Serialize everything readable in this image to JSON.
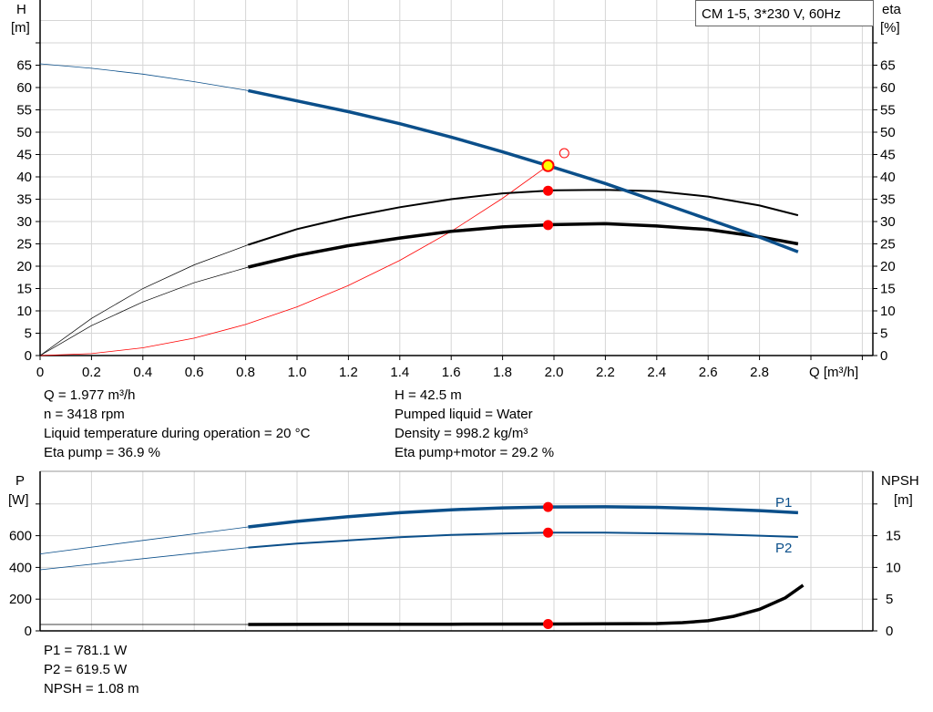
{
  "chart_data": [
    {
      "type": "line",
      "title": "CM 1-5, 3*230 V, 60Hz",
      "xlabel": "Q [m³/h]",
      "ylabel": "H [m]",
      "y2label": "eta [%]",
      "xlim": [
        0,
        3.2
      ],
      "ylim": [
        0,
        80
      ],
      "x_ticks": [
        "0",
        "0.2",
        "0.4",
        "0.6",
        "0.8",
        "1.0",
        "1.2",
        "1.4",
        "1.6",
        "1.8",
        "2.0",
        "2.2",
        "2.4",
        "2.6",
        "2.8"
      ],
      "y_ticks": [
        "0",
        "5",
        "10",
        "15",
        "20",
        "25",
        "30",
        "35",
        "40",
        "45",
        "50",
        "55",
        "60",
        "65"
      ],
      "grid": true,
      "series": [
        {
          "id": "H",
          "color": "#0b4f8a",
          "x": [
            0,
            0.2,
            0.4,
            0.6,
            0.81,
            1.0,
            1.2,
            1.4,
            1.6,
            1.8,
            1.977,
            2.2,
            2.4,
            2.6,
            2.8,
            2.95
          ],
          "y": [
            65.3,
            64.3,
            63,
            61.3,
            59.3,
            57,
            54.6,
            51.9,
            48.9,
            45.6,
            42.5,
            38.5,
            34.5,
            30.5,
            26.5,
            23.2
          ]
        },
        {
          "id": "eta_pump",
          "color": "#000000",
          "x": [
            0,
            0.2,
            0.4,
            0.6,
            0.81,
            1.0,
            1.2,
            1.4,
            1.6,
            1.8,
            2.0,
            2.2,
            2.4,
            2.6,
            2.8,
            2.95
          ],
          "y": [
            0,
            8.3,
            15,
            20.3,
            24.8,
            28.3,
            31,
            33.2,
            35,
            36.3,
            37,
            37.1,
            36.8,
            35.6,
            33.6,
            31.4
          ]
        },
        {
          "id": "eta_total",
          "color": "#000000",
          "x": [
            0,
            0.2,
            0.4,
            0.6,
            0.81,
            1.0,
            1.2,
            1.4,
            1.6,
            1.8,
            2.0,
            2.2,
            2.4,
            2.6,
            2.8,
            2.95
          ],
          "y": [
            0,
            6.7,
            12,
            16.3,
            19.8,
            22.4,
            24.6,
            26.3,
            27.8,
            28.8,
            29.3,
            29.5,
            29,
            28.2,
            26.6,
            25
          ]
        },
        {
          "id": "system",
          "color": "#ff0000",
          "x": [
            0,
            0.2,
            0.4,
            0.6,
            0.8,
            1.0,
            1.2,
            1.4,
            1.6,
            1.8,
            1.977
          ],
          "y": [
            0,
            0.43,
            1.74,
            3.9,
            6.96,
            10.9,
            15.7,
            21.3,
            27.8,
            35.2,
            42.5
          ]
        }
      ],
      "duty_point": {
        "x": 1.977,
        "y": 42.5
      },
      "markers": [
        {
          "x": 1.977,
          "y": 36.9
        },
        {
          "x": 1.977,
          "y": 29.2
        }
      ],
      "requested_point": {
        "x": 2.04,
        "y": 45.3
      }
    },
    {
      "type": "line",
      "ylabel": "P [W]",
      "y2label": "NPSH [m]",
      "xlim": [
        0,
        3.2
      ],
      "ylim": [
        0,
        1000
      ],
      "y_ticks": [
        "0",
        "200",
        "400",
        "600"
      ],
      "y2_ticks": [
        "0",
        "5",
        "10",
        "15"
      ],
      "grid": true,
      "series": [
        {
          "id": "P1",
          "name": "P1",
          "color": "#0b4f8a",
          "x": [
            0,
            0.4,
            0.81,
            1.0,
            1.2,
            1.4,
            1.6,
            1.8,
            1.977,
            2.2,
            2.4,
            2.6,
            2.8,
            2.95
          ],
          "y": [
            485,
            570,
            655,
            690,
            720,
            745,
            763,
            775,
            781,
            782,
            779,
            770,
            758,
            745
          ]
        },
        {
          "id": "P2",
          "name": "P2",
          "color": "#0b4f8a",
          "x": [
            0,
            0.4,
            0.81,
            1.0,
            1.2,
            1.4,
            1.6,
            1.8,
            1.977,
            2.2,
            2.4,
            2.6,
            2.8,
            2.95
          ],
          "y": [
            385,
            455,
            525,
            550,
            570,
            590,
            605,
            614,
            619.5,
            619,
            615,
            610,
            600,
            592
          ]
        },
        {
          "id": "NPSH",
          "color": "#000000",
          "x": [
            0,
            0.81,
            1.2,
            1.6,
            1.977,
            2.2,
            2.4,
            2.5,
            2.6,
            2.7,
            2.8,
            2.9,
            2.97
          ],
          "y_m": [
            1.0,
            1.0,
            1.03,
            1.05,
            1.08,
            1.1,
            1.15,
            1.3,
            1.6,
            2.3,
            3.4,
            5.2,
            7.2
          ]
        }
      ],
      "markers": [
        {
          "x": 1.977,
          "y": 781.1
        },
        {
          "x": 1.977,
          "y": 619.5
        },
        {
          "x": 1.977,
          "y_m": 1.08
        }
      ]
    }
  ],
  "readout": {
    "left": [
      "Q = 1.977 m³/h",
      "n = 3418 rpm",
      "Liquid temperature during operation = 20 °C",
      "Eta pump = 36.9 %"
    ],
    "right": [
      "H = 42.5 m",
      "Pumped liquid = Water",
      "Density = 998.2 kg/m³",
      "Eta pump+motor = 29.2 %"
    ],
    "power": [
      "P1 = 781.1 W",
      "P2 = 619.5 W",
      "NPSH = 1.08 m"
    ]
  },
  "labels": {
    "h": "H",
    "h_unit": "[m]",
    "eta": "eta",
    "eta_unit": "[%]",
    "p": "P",
    "p_unit": "[W]",
    "npsh": "NPSH",
    "npsh_unit": "[m]"
  }
}
